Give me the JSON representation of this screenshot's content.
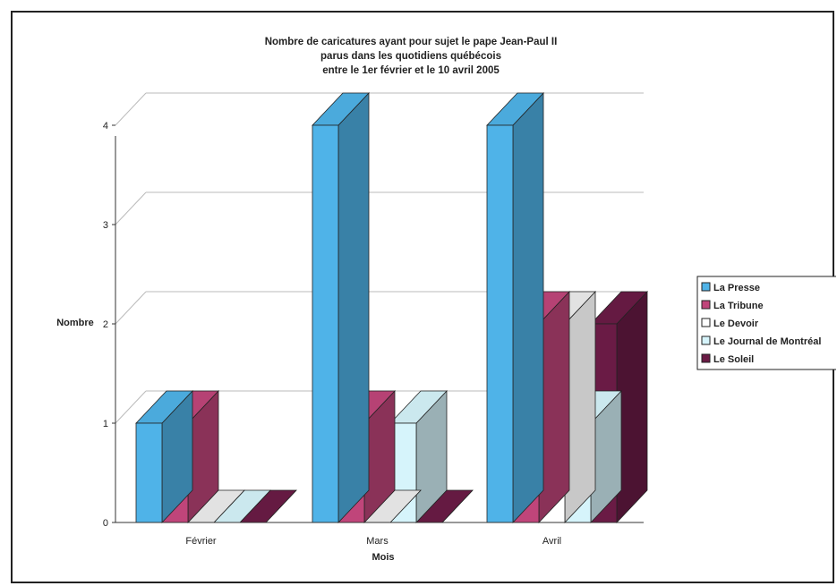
{
  "chart_data": {
    "type": "bar",
    "title": [
      "Nombre de caricatures ayant pour sujet le pape Jean-Paul II",
      "parus dans les quotidiens québécois",
      "entre le 1er février et le 10 avril 2005"
    ],
    "xlabel": "Mois",
    "ylabel": "Nombre",
    "ylim": [
      0,
      4
    ],
    "yticks": [
      "0",
      "1",
      "2",
      "3",
      "4"
    ],
    "grid": true,
    "legend_position": "right",
    "categories": [
      "Février",
      "Mars",
      "Avril"
    ],
    "series": [
      {
        "name": "La Presse",
        "values": [
          1,
          4,
          4
        ],
        "color": "#4fb3e8"
      },
      {
        "name": "La Tribune",
        "values": [
          1,
          1,
          2
        ],
        "color": "#c0457a"
      },
      {
        "name": "Le Devoir",
        "values": [
          0,
          0,
          2
        ],
        "color": "#ffffff"
      },
      {
        "name": "Le Journal de Montréal",
        "values": [
          0,
          1,
          1
        ],
        "color": "#d6f4fb"
      },
      {
        "name": "Le Soleil",
        "values": [
          0,
          0,
          2
        ],
        "color": "#6a1b45"
      }
    ]
  }
}
